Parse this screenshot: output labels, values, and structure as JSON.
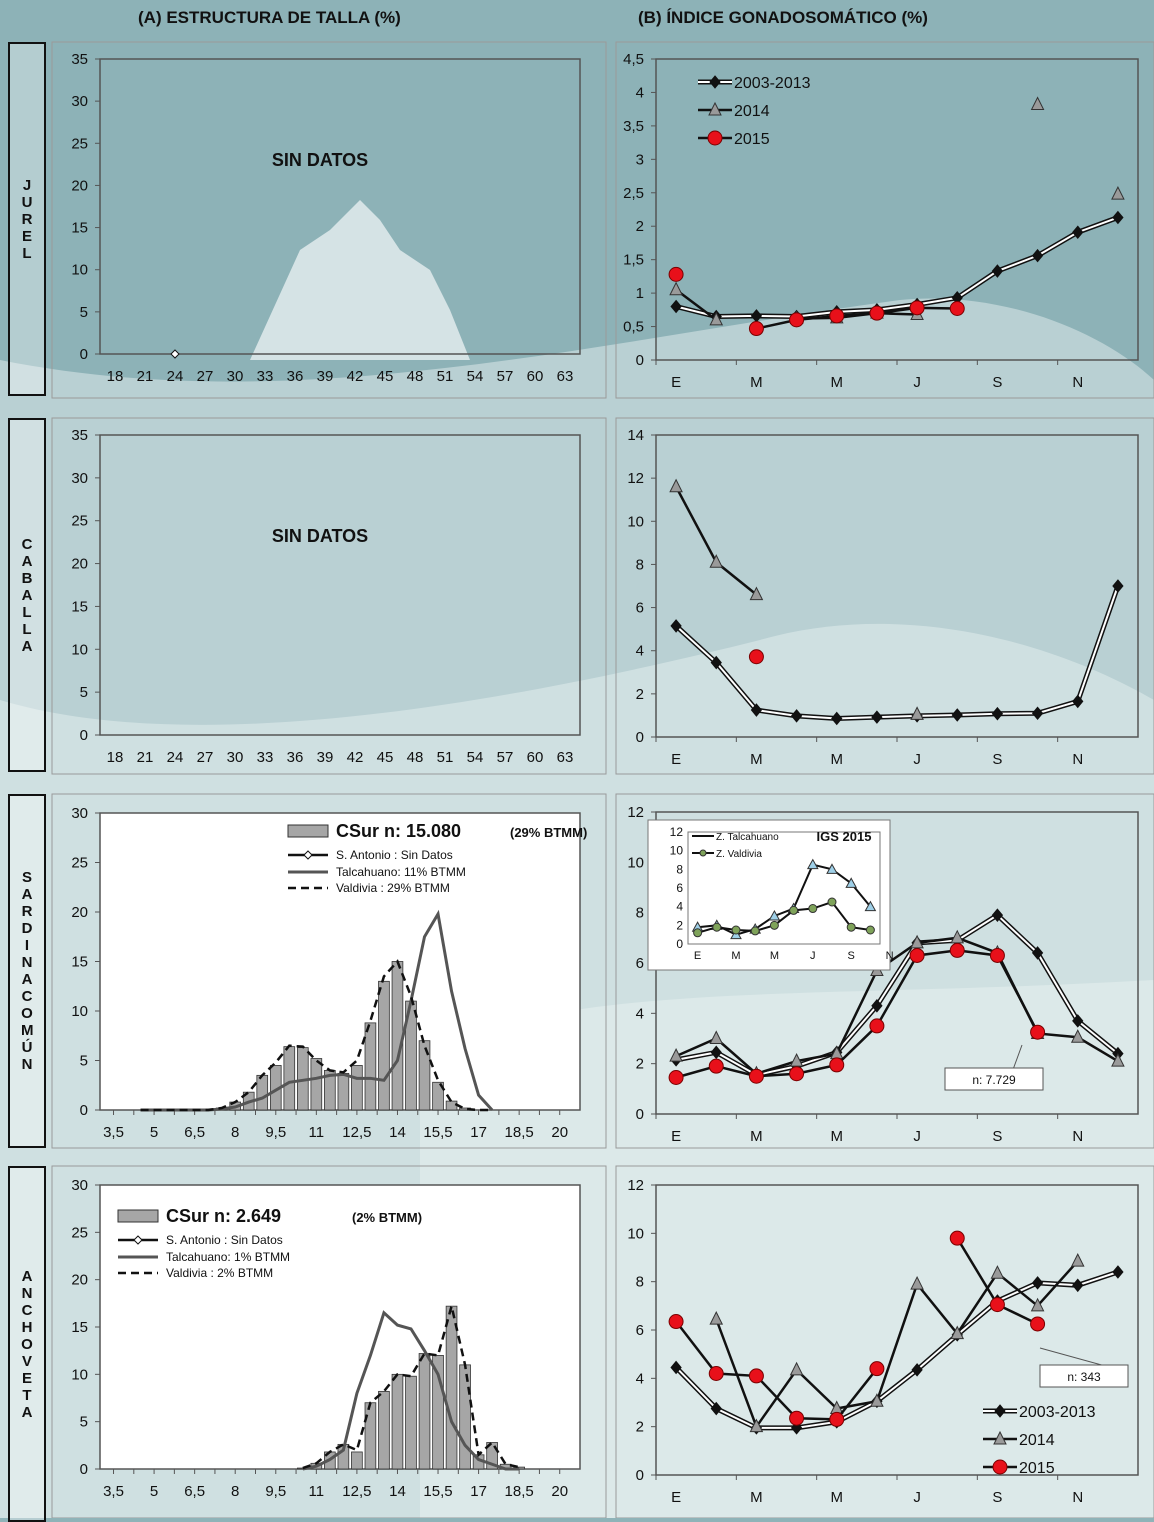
{
  "headers": {
    "a": "(A) ESTRUCTURA DE TALLA (%)",
    "b": "(B) ÍNDICE GONADOSOMÁTICO (%)"
  },
  "species": [
    "JUREL",
    "CABALLA",
    "SARDINACOMÚN",
    "ANCHOVETA"
  ],
  "months": [
    "E",
    "M",
    "M",
    "J",
    "S",
    "N"
  ],
  "colors": {
    "hist": "#a6a6a6",
    "y0313": "#111111",
    "y2014": "#9a9a9a",
    "y2015": "#e8101a",
    "inset_t": "#111111",
    "inset_v": "#7fa35a"
  },
  "chart_data": [
    {
      "id": "jurel_talla",
      "type": "line",
      "species": "JUREL",
      "x_ticks": [
        "18",
        "21",
        "24",
        "27",
        "30",
        "33",
        "36",
        "39",
        "42",
        "45",
        "48",
        "51",
        "54",
        "57",
        "60",
        "63"
      ],
      "ylim": [
        0,
        35
      ],
      "y_ticks": [
        "0",
        "5",
        "10",
        "15",
        "20",
        "25",
        "30",
        "35"
      ],
      "annotation": "SIN DATOS",
      "marker_point": {
        "x": 24,
        "y": 0
      }
    },
    {
      "id": "jurel_igs",
      "type": "line",
      "species": "JUREL",
      "x_ticks": [
        "E",
        "M",
        "M",
        "J",
        "S",
        "N"
      ],
      "ylim": [
        0,
        4.5
      ],
      "y_ticks": [
        "0",
        "0,5",
        "1",
        "1,5",
        "2",
        "2,5",
        "3",
        "3,5",
        "4",
        "4,5"
      ],
      "legend": [
        "2003-2013",
        "2014",
        "2015"
      ],
      "series": [
        {
          "name": "2003-2013",
          "values": [
            0.8,
            0.65,
            0.66,
            0.65,
            0.72,
            0.75,
            0.83,
            0.93,
            1.33,
            1.56,
            1.91,
            2.13
          ]
        },
        {
          "name": "2014",
          "values": [
            1.05,
            0.6,
            null,
            0.62,
            0.63,
            0.7,
            0.68,
            null,
            null,
            3.82,
            null,
            2.48
          ]
        },
        {
          "name": "2015",
          "values": [
            1.28,
            null,
            0.47,
            0.6,
            0.66,
            0.7,
            0.78,
            0.77,
            null,
            null,
            null,
            null
          ]
        }
      ]
    },
    {
      "id": "caballa_talla",
      "type": "line",
      "species": "CABALLA",
      "x_ticks": [
        "18",
        "21",
        "24",
        "27",
        "30",
        "33",
        "36",
        "39",
        "42",
        "45",
        "48",
        "51",
        "54",
        "57",
        "60",
        "63"
      ],
      "ylim": [
        0,
        35
      ],
      "y_ticks": [
        "0",
        "5",
        "10",
        "15",
        "20",
        "25",
        "30",
        "35"
      ],
      "annotation": "SIN DATOS"
    },
    {
      "id": "caballa_igs",
      "type": "line",
      "species": "CABALLA",
      "x_ticks": [
        "E",
        "M",
        "M",
        "J",
        "S",
        "N"
      ],
      "ylim": [
        0,
        14
      ],
      "y_ticks": [
        "0",
        "2",
        "4",
        "6",
        "8",
        "10",
        "12",
        "14"
      ],
      "series": [
        {
          "name": "2003-2013",
          "values": [
            5.15,
            3.45,
            1.25,
            0.98,
            0.86,
            0.92,
            0.98,
            1.02,
            1.08,
            1.1,
            1.65,
            7.0
          ]
        },
        {
          "name": "2014",
          "values": [
            11.6,
            8.1,
            6.6,
            null,
            null,
            null,
            1.05,
            null,
            null,
            null,
            null,
            null
          ]
        },
        {
          "name": "2015",
          "values": [
            null,
            null,
            3.72,
            null,
            null,
            null,
            null,
            null,
            null,
            null,
            null,
            null
          ]
        }
      ]
    },
    {
      "id": "sardina_talla",
      "type": "bar",
      "species": "SARDINA COMÚN",
      "x_ticks": [
        "3,5",
        "5",
        "6,5",
        "8",
        "9,5",
        "11",
        "12,5",
        "14",
        "15,5",
        "17",
        "18,5",
        "20"
      ],
      "ylim": [
        0,
        30
      ],
      "y_ticks": [
        "0",
        "5",
        "10",
        "15",
        "20",
        "25",
        "30"
      ],
      "legend": [
        "CSur n: 15.080",
        "(29% BTMM)",
        "S. Antonio  : Sin Datos",
        "Talcahuano: 11% BTMM",
        "Valdivia      : 29% BTMM"
      ],
      "x": [
        4.5,
        5,
        5.5,
        6,
        6.5,
        7,
        7.5,
        8,
        8.5,
        9,
        9.5,
        10,
        10.5,
        11,
        11.5,
        12,
        12.5,
        13,
        13.5,
        14,
        14.5,
        15,
        15.5,
        16,
        16.5,
        17,
        17.5
      ],
      "values": [
        0,
        0,
        0,
        0,
        0,
        0,
        0.2,
        0.8,
        1.8,
        3.5,
        4.5,
        6.4,
        6.3,
        5.2,
        4.0,
        3.7,
        4.5,
        8.8,
        13.0,
        15.0,
        11.0,
        7.0,
        2.8,
        0.9,
        0.2,
        0,
        0
      ],
      "series": [
        {
          "name": "Talcahuano",
          "values": [
            0,
            0,
            0,
            0,
            0,
            0,
            0.1,
            0.3,
            0.8,
            1.2,
            2.0,
            2.8,
            3.0,
            3.2,
            3.5,
            3.6,
            3.2,
            3.2,
            3.0,
            5.0,
            11.0,
            17.5,
            19.8,
            12.0,
            6.2,
            1.5,
            0
          ]
        },
        {
          "name": "Valdivia",
          "values": [
            0,
            0,
            0,
            0,
            0,
            0,
            0.2,
            0.8,
            1.8,
            3.5,
            4.8,
            6.5,
            6.4,
            5.0,
            4.0,
            3.8,
            5.0,
            9.0,
            13.5,
            15.0,
            11.5,
            6.5,
            3.0,
            0.8,
            0.1,
            0,
            0
          ]
        }
      ]
    },
    {
      "id": "sardina_igs",
      "type": "line",
      "species": "SARDINA COMÚN",
      "x_ticks": [
        "E",
        "M",
        "M",
        "J",
        "S",
        "N"
      ],
      "ylim": [
        0,
        12
      ],
      "y_ticks": [
        "0",
        "2",
        "4",
        "6",
        "8",
        "10",
        "12"
      ],
      "callout": "n: 7.729",
      "series": [
        {
          "name": "2003-2013",
          "values": [
            2.15,
            2.45,
            1.55,
            1.9,
            2.45,
            4.3,
            6.8,
            6.9,
            7.9,
            6.4,
            3.7,
            2.4
          ]
        },
        {
          "name": "2014",
          "values": [
            2.3,
            3.0,
            1.6,
            2.1,
            2.4,
            5.7,
            6.8,
            7.0,
            6.4,
            3.2,
            3.05,
            2.1
          ]
        },
        {
          "name": "2015",
          "values": [
            1.45,
            1.9,
            1.5,
            1.6,
            1.95,
            3.5,
            6.3,
            6.5,
            6.3,
            3.25,
            null,
            null
          ]
        }
      ],
      "inset": {
        "title": "IGS 2015",
        "legend": [
          "Z. Talcahuano",
          "Z. Valdivia"
        ],
        "ylim": [
          0,
          12
        ],
        "y_ticks": [
          "0",
          "2",
          "4",
          "6",
          "8",
          "10",
          "12"
        ],
        "x_ticks": [
          "E",
          "M",
          "M",
          "J",
          "S",
          "N"
        ],
        "series": [
          {
            "name": "Z. Talcahuano",
            "values": [
              1.8,
              2.0,
              1.0,
              1.6,
              3.0,
              3.8,
              8.5,
              8.0,
              6.5,
              4.0
            ]
          },
          {
            "name": "Z. Valdivia",
            "values": [
              1.2,
              1.8,
              1.5,
              1.4,
              2.0,
              3.6,
              3.8,
              4.5,
              1.8,
              1.5
            ]
          }
        ]
      }
    },
    {
      "id": "anchoveta_talla",
      "type": "bar",
      "species": "ANCHOVETA",
      "x_ticks": [
        "3,5",
        "5",
        "6,5",
        "8",
        "9,5",
        "11",
        "12,5",
        "14",
        "15,5",
        "17",
        "18,5",
        "20"
      ],
      "ylim": [
        0,
        30
      ],
      "y_ticks": [
        "0",
        "5",
        "10",
        "15",
        "20",
        "25",
        "30"
      ],
      "legend": [
        "CSur n: 2.649",
        "(2% BTMM)",
        "S. Antonio  : Sin Datos",
        "Talcahuano: 1% BTMM",
        "Valdivia      : 2% BTMM"
      ],
      "x": [
        10.5,
        11,
        11.5,
        12,
        12.5,
        13,
        13.5,
        14,
        14.5,
        15,
        15.5,
        16,
        16.5,
        17,
        17.5,
        18,
        18.5
      ],
      "values": [
        0.1,
        0.6,
        1.8,
        2.6,
        1.8,
        7.0,
        8.2,
        10.0,
        9.8,
        12.2,
        12.0,
        17.2,
        11.0,
        1.5,
        2.8,
        0.5,
        0.2
      ],
      "series": [
        {
          "name": "Talcahuano",
          "values": [
            0,
            0.3,
            1.0,
            2.0,
            8.0,
            12.0,
            16.5,
            15.2,
            14.8,
            12.5,
            10.0,
            5.0,
            2.5,
            1.0,
            0.5,
            0,
            0
          ]
        },
        {
          "name": "Valdivia",
          "values": [
            0.1,
            0.6,
            1.8,
            2.6,
            2.0,
            7.0,
            8.2,
            10.0,
            9.8,
            12.2,
            12.0,
            17.2,
            11.0,
            1.5,
            2.8,
            0.5,
            0.2
          ]
        }
      ]
    },
    {
      "id": "anchoveta_igs",
      "type": "line",
      "species": "ANCHOVETA",
      "x_ticks": [
        "E",
        "M",
        "M",
        "J",
        "S",
        "N"
      ],
      "ylim": [
        0,
        12
      ],
      "y_ticks": [
        "0",
        "2",
        "4",
        "6",
        "8",
        "10",
        "12"
      ],
      "legend": [
        "2003-2013",
        "2014",
        "2015"
      ],
      "callout": "n: 343",
      "series": [
        {
          "name": "2003-2013",
          "values": [
            4.45,
            2.75,
            1.95,
            1.95,
            2.2,
            3.05,
            4.35,
            5.8,
            7.2,
            7.95,
            7.85,
            8.4
          ]
        },
        {
          "name": "2014",
          "values": [
            null,
            6.45,
            2.0,
            4.35,
            2.75,
            3.05,
            7.9,
            5.85,
            8.35,
            7.0,
            8.85,
            null
          ]
        },
        {
          "name": "2015",
          "values": [
            6.35,
            4.2,
            4.1,
            2.35,
            2.3,
            4.4,
            null,
            9.8,
            7.05,
            6.25,
            null,
            null
          ]
        }
      ]
    }
  ]
}
